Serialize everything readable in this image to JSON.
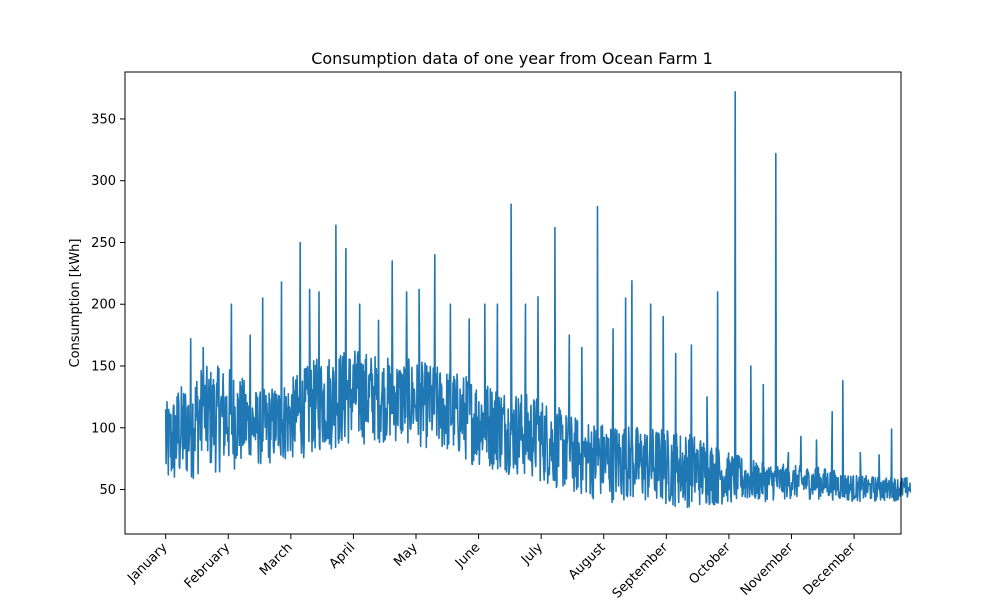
{
  "chart_data": {
    "type": "line",
    "title": "Consumption data of one year from Ocean Farm 1",
    "xlabel": "",
    "ylabel": "Consumption [kWh]",
    "ylim": [
      14,
      388
    ],
    "xlim": [
      0.35,
      12.75
    ],
    "grid": false,
    "legend": "none",
    "x_tick_labels": [
      "January",
      "February",
      "March",
      "April",
      "May",
      "June",
      "July",
      "August",
      "September",
      "October",
      "November",
      "December"
    ],
    "x_tick_positions": [
      1,
      2,
      3,
      4,
      5,
      6,
      7,
      8,
      9,
      10,
      11,
      12
    ],
    "y_ticks": [
      50,
      100,
      150,
      200,
      250,
      300,
      350
    ],
    "series": [
      {
        "color": "#1f77b4",
        "envelope": {
          "x": [
            1.0,
            1.5,
            2.0,
            2.5,
            3.0,
            3.5,
            4.0,
            4.5,
            5.0,
            5.5,
            6.0,
            6.5,
            7.0,
            7.5,
            8.0,
            8.5,
            9.0,
            9.5,
            10.0,
            10.5,
            11.0,
            11.5,
            12.0,
            12.5,
            12.9
          ],
          "low": [
            45,
            60,
            65,
            68,
            72,
            80,
            85,
            88,
            85,
            78,
            68,
            62,
            55,
            45,
            40,
            38,
            36,
            35,
            38,
            40,
            42,
            42,
            40,
            40,
            42
          ],
          "high": [
            120,
            150,
            150,
            130,
            140,
            160,
            165,
            158,
            155,
            148,
            140,
            132,
            125,
            110,
            105,
            102,
            100,
            95,
            80,
            72,
            70,
            68,
            62,
            60,
            60
          ]
        },
        "spikes": [
          {
            "x": 1.0,
            "y": 115
          },
          {
            "x": 1.2,
            "y": 128
          },
          {
            "x": 1.4,
            "y": 172
          },
          {
            "x": 1.6,
            "y": 165
          },
          {
            "x": 1.85,
            "y": 148
          },
          {
            "x": 2.05,
            "y": 200
          },
          {
            "x": 2.35,
            "y": 175
          },
          {
            "x": 2.55,
            "y": 205
          },
          {
            "x": 2.85,
            "y": 218
          },
          {
            "x": 3.15,
            "y": 250
          },
          {
            "x": 3.3,
            "y": 212
          },
          {
            "x": 3.45,
            "y": 210
          },
          {
            "x": 3.72,
            "y": 264
          },
          {
            "x": 3.88,
            "y": 245
          },
          {
            "x": 4.1,
            "y": 200
          },
          {
            "x": 4.4,
            "y": 187
          },
          {
            "x": 4.62,
            "y": 235
          },
          {
            "x": 4.85,
            "y": 210
          },
          {
            "x": 5.05,
            "y": 212
          },
          {
            "x": 5.3,
            "y": 240
          },
          {
            "x": 5.55,
            "y": 200
          },
          {
            "x": 5.85,
            "y": 188
          },
          {
            "x": 6.1,
            "y": 200
          },
          {
            "x": 6.3,
            "y": 200
          },
          {
            "x": 6.52,
            "y": 281
          },
          {
            "x": 6.75,
            "y": 200
          },
          {
            "x": 6.95,
            "y": 206
          },
          {
            "x": 7.22,
            "y": 262
          },
          {
            "x": 7.45,
            "y": 175
          },
          {
            "x": 7.65,
            "y": 165
          },
          {
            "x": 7.9,
            "y": 279
          },
          {
            "x": 8.15,
            "y": 180
          },
          {
            "x": 8.35,
            "y": 205
          },
          {
            "x": 8.45,
            "y": 219
          },
          {
            "x": 8.75,
            "y": 200
          },
          {
            "x": 8.95,
            "y": 190
          },
          {
            "x": 9.15,
            "y": 160
          },
          {
            "x": 9.4,
            "y": 167
          },
          {
            "x": 9.65,
            "y": 125
          },
          {
            "x": 9.82,
            "y": 210
          },
          {
            "x": 10.1,
            "y": 372
          },
          {
            "x": 10.35,
            "y": 150
          },
          {
            "x": 10.55,
            "y": 135
          },
          {
            "x": 10.75,
            "y": 322
          },
          {
            "x": 10.95,
            "y": 80
          },
          {
            "x": 11.15,
            "y": 93
          },
          {
            "x": 11.4,
            "y": 90
          },
          {
            "x": 11.65,
            "y": 113
          },
          {
            "x": 11.82,
            "y": 138
          },
          {
            "x": 12.1,
            "y": 80
          },
          {
            "x": 12.4,
            "y": 78
          },
          {
            "x": 12.6,
            "y": 99
          }
        ]
      }
    ]
  }
}
